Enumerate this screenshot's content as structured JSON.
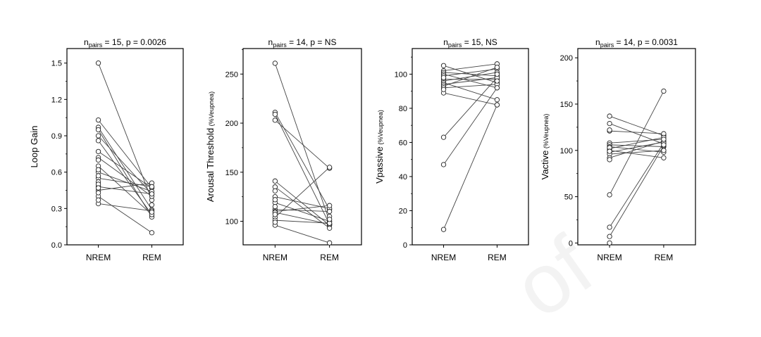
{
  "chart_data": [
    {
      "type": "scatter",
      "title": "n_pairs = 15, p = 0.0026",
      "title_parts": {
        "n": "n",
        "sub": "pairs",
        "rest": " = 15, p = 0.0026"
      },
      "ylabel": "Loop Gain",
      "ylabel_unit": "",
      "categories": [
        "NREM",
        "REM"
      ],
      "ylim": [
        0,
        1.62
      ],
      "yticks": [
        0.0,
        0.3,
        0.6,
        0.9,
        1.2,
        1.5
      ],
      "ytick_labels": [
        "0.0",
        "0.3",
        "0.6",
        "0.9",
        "1.2",
        "1.5"
      ],
      "pairs": [
        [
          1.5,
          0.37
        ],
        [
          1.03,
          0.47
        ],
        [
          0.97,
          0.29
        ],
        [
          0.95,
          0.23
        ],
        [
          0.9,
          0.42
        ],
        [
          0.86,
          0.25
        ],
        [
          0.77,
          0.47
        ],
        [
          0.72,
          0.4
        ],
        [
          0.65,
          0.25
        ],
        [
          0.6,
          0.44
        ],
        [
          0.55,
          0.48
        ],
        [
          0.48,
          0.42
        ],
        [
          0.45,
          0.51
        ],
        [
          0.4,
          0.1
        ],
        [
          0.34,
          0.28
        ]
      ],
      "singles": {
        "left": [
          0.7,
          0.62,
          0.57,
          0.52,
          0.5,
          0.47,
          0.43,
          0.37
        ],
        "right": [
          0.33,
          0.27,
          0.48
        ]
      }
    },
    {
      "type": "scatter",
      "title": "n_pairs = 14, p = NS",
      "title_parts": {
        "n": "n",
        "sub": "pairs",
        "rest": " = 14, p = NS"
      },
      "ylabel": "Arousal Threshold",
      "ylabel_unit": "(%Veupnea)",
      "categories": [
        "NREM",
        "REM"
      ],
      "ylim": [
        76,
        276
      ],
      "yticks": [
        100,
        150,
        200,
        250
      ],
      "ytick_labels": [
        "100",
        "150",
        "200",
        "250"
      ],
      "pairs": [
        [
          261,
          100
        ],
        [
          211,
          112
        ],
        [
          209,
          97
        ],
        [
          203,
          154
        ],
        [
          141,
          96
        ],
        [
          135,
          93
        ],
        [
          125,
          113
        ],
        [
          119,
          100
        ],
        [
          112,
          110
        ],
        [
          110,
          116
        ],
        [
          109,
          97
        ],
        [
          104,
          155
        ],
        [
          101,
          98
        ],
        [
          96,
          78
        ]
      ],
      "singles": {
        "left": [
          131,
          122,
          115,
          107,
          99
        ],
        "right": [
          105,
          102
        ]
      }
    },
    {
      "type": "scatter",
      "title": "n_pairs = 15, NS",
      "title_parts": {
        "n": "n",
        "sub": "pairs",
        "rest": " = 15, NS"
      },
      "ylabel": "Vpassive",
      "ylabel_unit": "(%Veupnea)",
      "categories": [
        "NREM",
        "REM"
      ],
      "ylim": [
        0,
        115
      ],
      "yticks": [
        0,
        20,
        40,
        60,
        80,
        100
      ],
      "ytick_labels": [
        "0",
        "20",
        "40",
        "60",
        "80",
        "100"
      ],
      "pairs": [
        [
          105,
          95
        ],
        [
          102,
          106
        ],
        [
          101,
          99
        ],
        [
          100,
          92
        ],
        [
          99,
          103
        ],
        [
          97,
          97
        ],
        [
          96,
          101
        ],
        [
          95,
          85
        ],
        [
          94,
          98
        ],
        [
          93,
          104
        ],
        [
          92,
          94
        ],
        [
          89,
          82
        ],
        [
          63,
          98
        ],
        [
          47,
          92
        ],
        [
          9,
          82
        ]
      ],
      "singles": {
        "left": [
          98,
          91
        ],
        "right": [
          100,
          96
        ]
      }
    },
    {
      "type": "scatter",
      "title": "n_pairs = 14,  p = 0.0031",
      "title_parts": {
        "n": "n",
        "sub": "pairs",
        "rest": " = 14,  p = 0.0031"
      },
      "ylabel": "Vactive",
      "ylabel_unit": "(%Veupnea)",
      "categories": [
        "NREM",
        "REM"
      ],
      "ylim": [
        -2,
        210
      ],
      "yticks": [
        0,
        50,
        100,
        150,
        200
      ],
      "ytick_labels": [
        "0",
        "50",
        "100",
        "150",
        "200"
      ],
      "pairs": [
        [
          137,
          116
        ],
        [
          129,
          107
        ],
        [
          121,
          118
        ],
        [
          108,
          112
        ],
        [
          106,
          104
        ],
        [
          104,
          98
        ],
        [
          102,
          114
        ],
        [
          100,
          92
        ],
        [
          98,
          109
        ],
        [
          96,
          100
        ],
        [
          92,
          110
        ],
        [
          52,
          164
        ],
        [
          17,
          108
        ],
        [
          7,
          105
        ]
      ],
      "singles": {
        "left": [
          122,
          103,
          99,
          90,
          0
        ],
        "right": [
          112,
          106
        ]
      }
    }
  ]
}
